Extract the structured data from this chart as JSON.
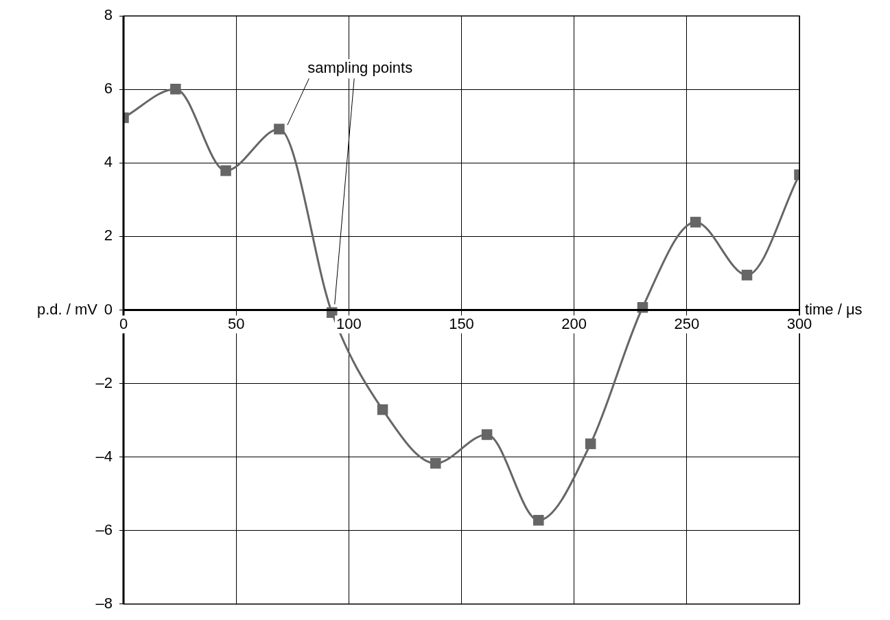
{
  "chart_data": {
    "type": "line",
    "xlabel": "time / μs",
    "ylabel": "p.d. / mV",
    "x": [
      0,
      23.1,
      45.4,
      69.1,
      92.5,
      115,
      138.5,
      161.3,
      184.2,
      207.3,
      230.4,
      253.9,
      276.7,
      300
    ],
    "series": [
      {
        "color": "#666666",
        "values": [
          5.23,
          6.01,
          3.79,
          4.92,
          -0.07,
          -2.71,
          -4.17,
          -3.39,
          -5.72,
          -3.64,
          0.07,
          2.39,
          0.95,
          3.68
        ]
      }
    ],
    "xlim": [
      0,
      300
    ],
    "xticks": [
      0,
      50,
      100,
      150,
      200,
      250,
      300
    ],
    "ylim": [
      -8,
      8
    ],
    "yticks": [
      {
        "value": -8,
        "label": "–8"
      },
      {
        "value": -6,
        "label": "–6"
      },
      {
        "value": -4,
        "label": "–4"
      },
      {
        "value": -2,
        "label": "–2"
      },
      0,
      2,
      4,
      6,
      8
    ],
    "grid": true,
    "legend": false,
    "marker": "square",
    "line_style": "solid",
    "annotations": [
      "sampling points"
    ]
  }
}
